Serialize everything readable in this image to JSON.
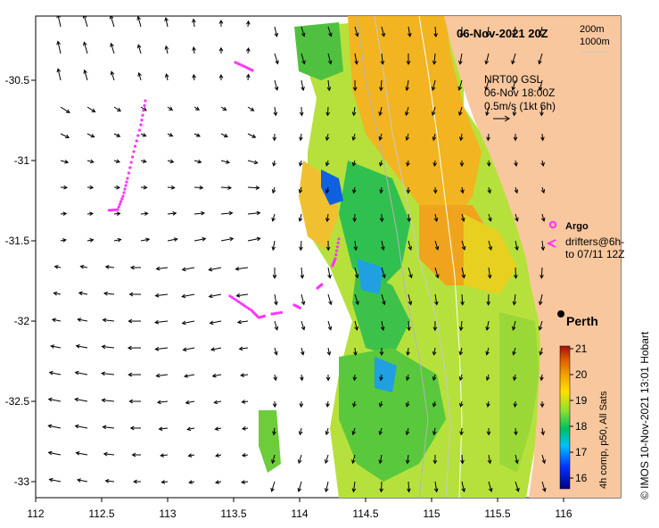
{
  "title": "06-Nov-2021 20Z",
  "depth_labels": [
    "200m",
    "1000m"
  ],
  "current_info": {
    "line1": "NRT00 GSL",
    "line2": "06-Nov 18:00Z",
    "line3": "0.5m/s (1kt 6h)"
  },
  "legend": {
    "argo": "Argo",
    "drifters_line1": "drifters@6h-",
    "drifters_line2": "to 07/11 12Z"
  },
  "city": "Perth",
  "colorbar": {
    "ticks": [
      "21",
      "20",
      "19",
      "18",
      "17",
      "16"
    ],
    "label": "4h comp, p50, All Sats"
  },
  "credit": "© IMOS 10-Nov-2021 13:01 Hobart",
  "axes": {
    "x_ticks": [
      "112",
      "112.5",
      "113",
      "113.5",
      "114",
      "114.5",
      "115",
      "115.5",
      "116"
    ],
    "y_ticks": [
      "-30.5",
      "-31",
      "-31.5",
      "-32",
      "-32.5",
      "-33"
    ]
  },
  "colors": {
    "land": "#f8c79e",
    "argo": "#ff33ff",
    "drifter": "#ff33ff"
  }
}
